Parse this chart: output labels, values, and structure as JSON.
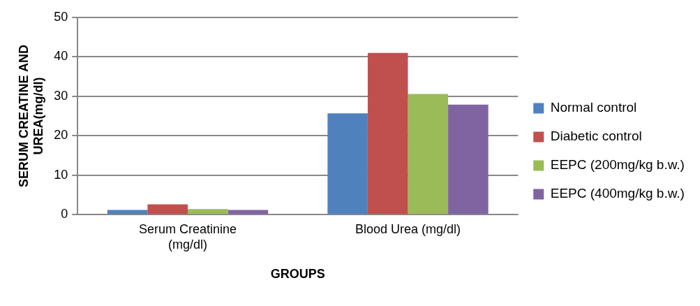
{
  "chart_data": {
    "type": "bar",
    "xlabel": "GROUPS",
    "ylabel": "SERUM CREATINE AND UREA(mg/dl)",
    "categories": [
      "Serum Creatinine (mg/dl)",
      "Blood Urea (mg/dl)"
    ],
    "series": [
      {
        "name": "Normal control",
        "color": "#4f81bd",
        "values": [
          1.2,
          25.7
        ]
      },
      {
        "name": "Diabetic control",
        "color": "#c0504d",
        "values": [
          2.6,
          41.0
        ]
      },
      {
        "name": "EEPC (200mg/kg b.w.)",
        "color": "#9bbb59",
        "values": [
          1.4,
          30.6
        ]
      },
      {
        "name": "EEPC (400mg/kg b.w.)",
        "color": "#8064a2",
        "values": [
          1.2,
          27.9
        ]
      }
    ],
    "ylim": [
      0,
      50
    ],
    "yticks": [
      0,
      10,
      20,
      30,
      40,
      50
    ],
    "grid": "y",
    "legend": "right"
  }
}
